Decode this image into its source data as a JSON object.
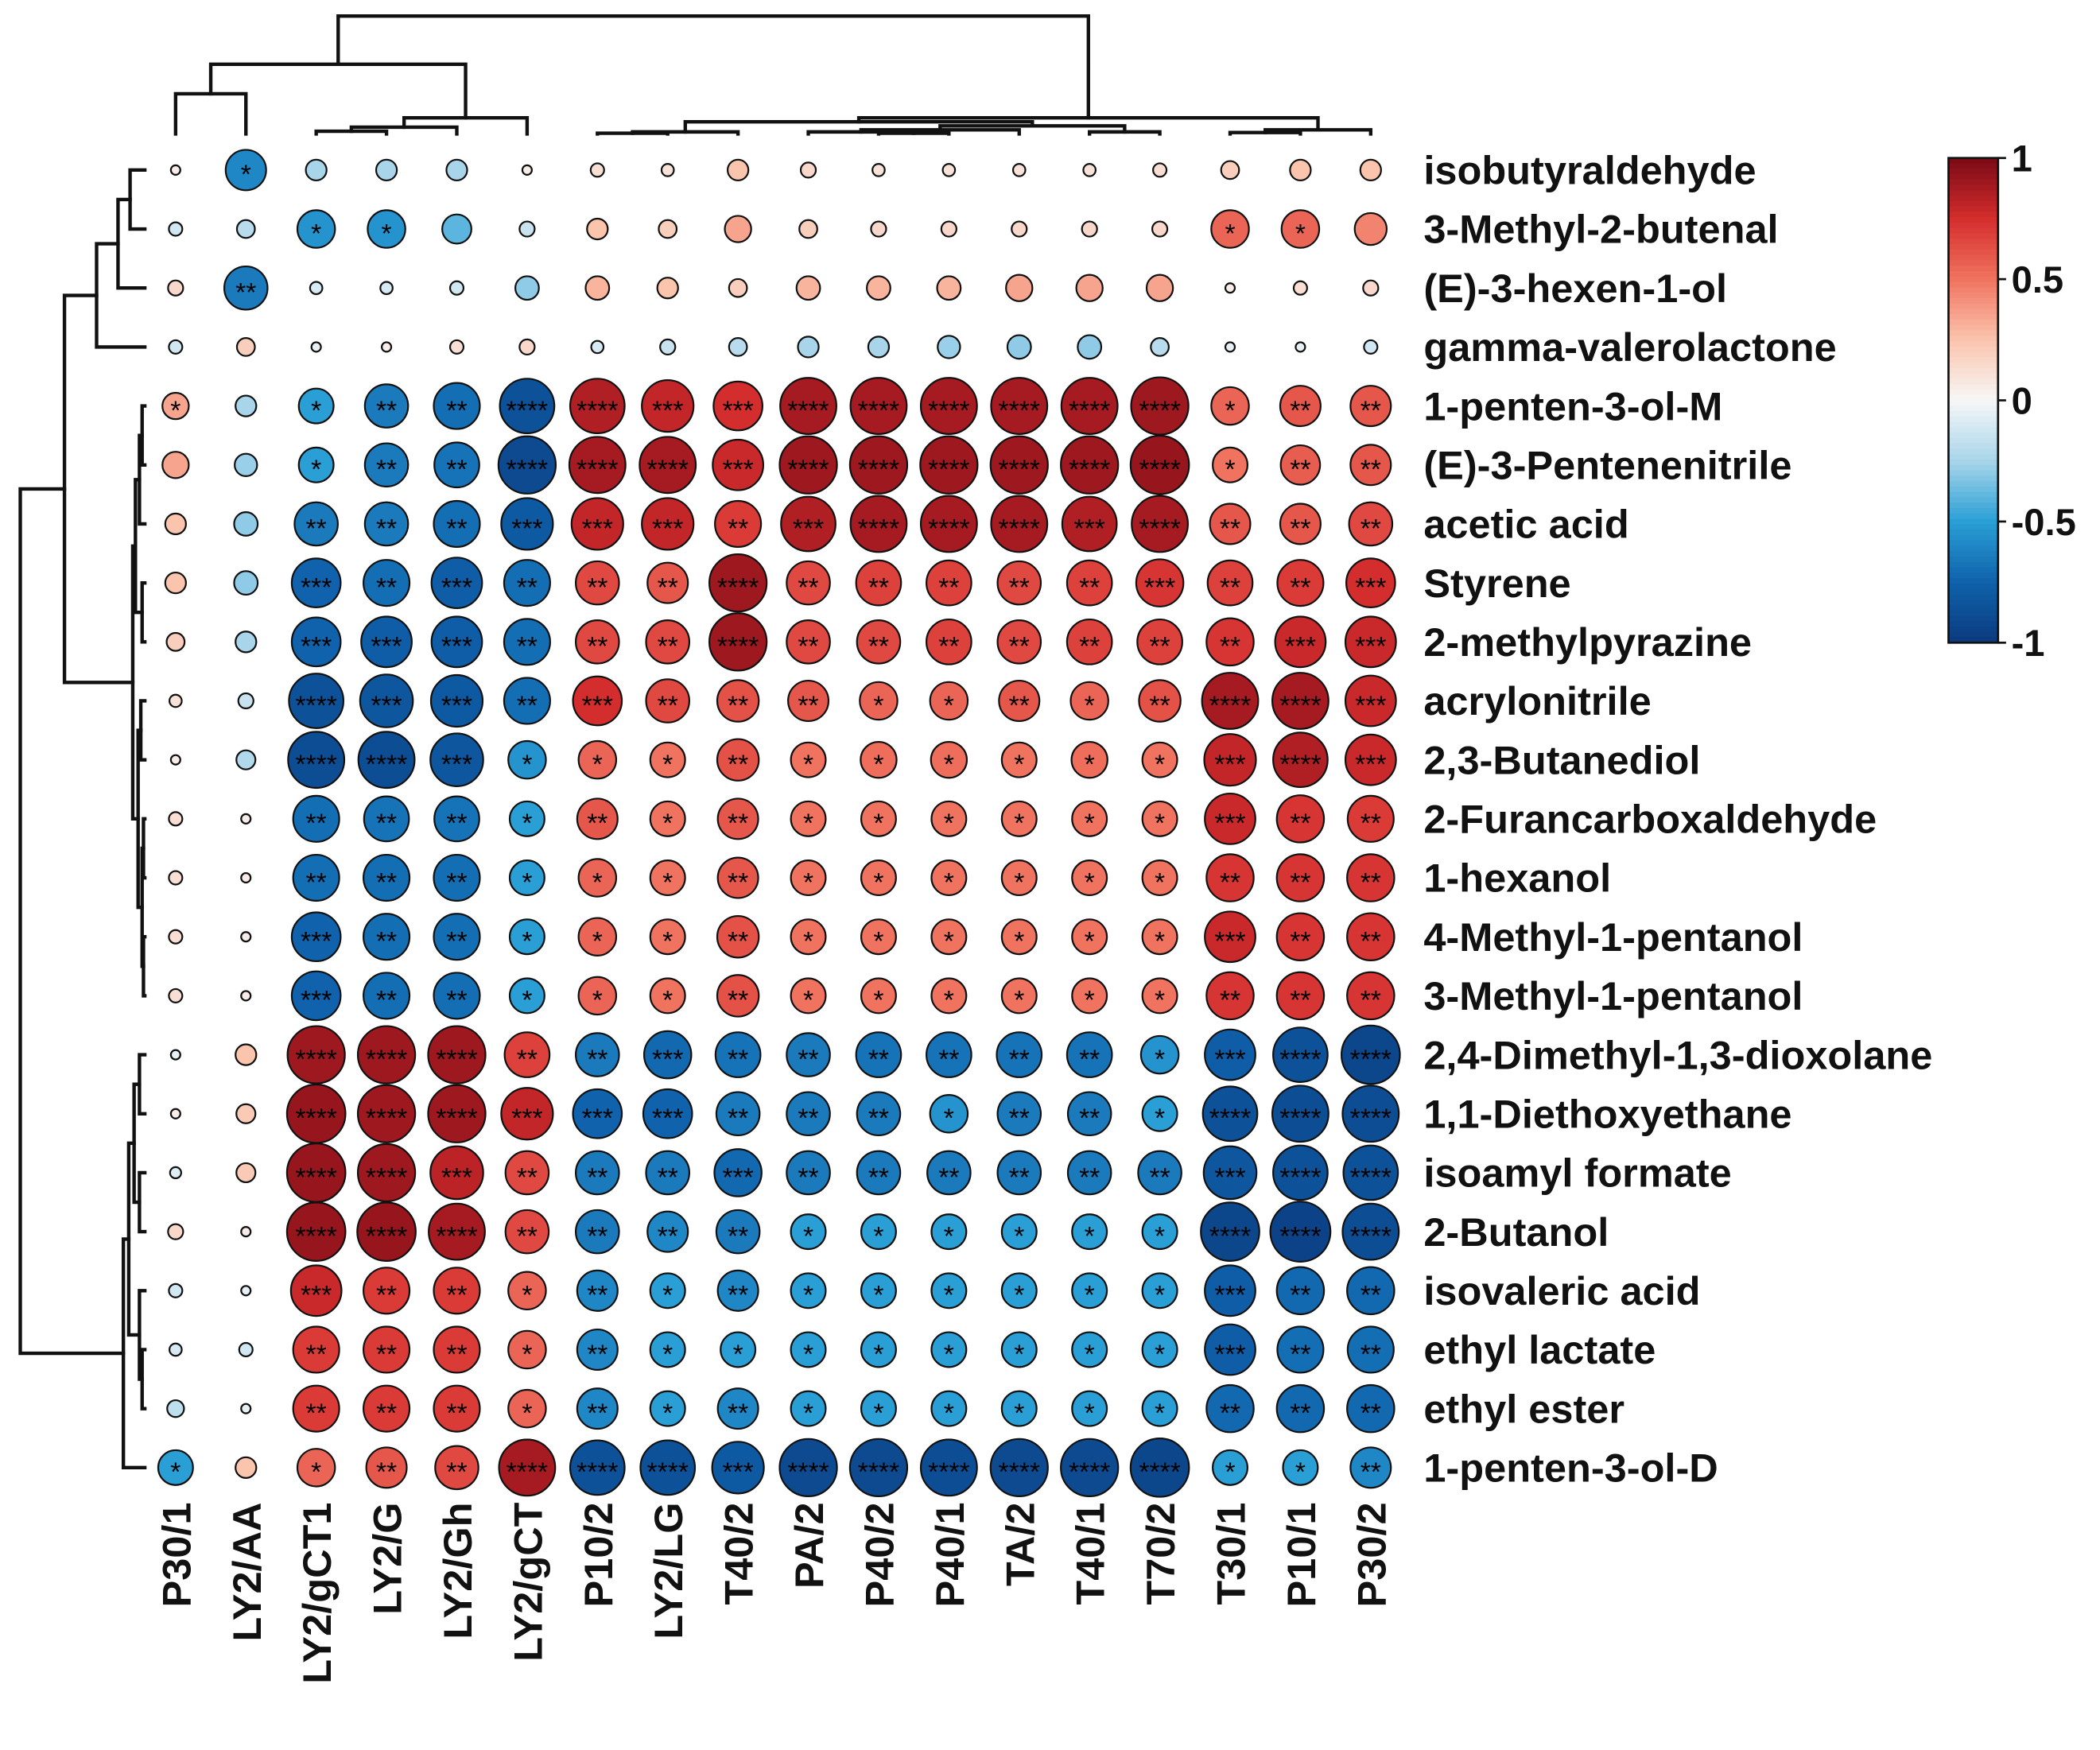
{
  "chart_data": {
    "type": "heatmap",
    "subtype": "correlation-bubble-with-dendrograms",
    "rows": [
      "isobutyraldehyde",
      "3-Methyl-2-butenal",
      "(E)-3-hexen-1-ol",
      "gamma-valerolactone",
      "1-penten-3-ol-M",
      "(E)-3-Pentenenitrile",
      "acetic acid",
      "Styrene",
      "2-methylpyrazine",
      "acrylonitrile",
      "2,3-Butanediol",
      "2-Furancarboxaldehyde",
      "1-hexanol",
      "4-Methyl-1-pentanol",
      "3-Methyl-1-pentanol",
      "2,4-Dimethyl-1,3-dioxolane",
      "1,1-Diethoxyethane",
      "isoamyl formate",
      "2-Butanol",
      "isovaleric acid",
      "ethyl lactate",
      "ethyl ester",
      "1-penten-3-ol-D"
    ],
    "columns": [
      "P30/1",
      "LY2/AA",
      "LY2/gCT1",
      "LY2/G",
      "LY2/Gh",
      "LY2/gCT",
      "P10/2",
      "LY2/LG",
      "T40/2",
      "PA/2",
      "P40/2",
      "P40/1",
      "TA/2",
      "T40/1",
      "T70/2",
      "T30/1",
      "P10/1",
      "P30/2"
    ],
    "values": [
      [
        0.05,
        -0.6,
        -0.25,
        -0.25,
        -0.25,
        0.05,
        0.12,
        0.1,
        0.25,
        0.15,
        0.1,
        0.1,
        0.1,
        0.1,
        0.12,
        0.2,
        0.25,
        0.25
      ],
      [
        -0.12,
        -0.2,
        -0.55,
        -0.55,
        -0.4,
        -0.15,
        0.25,
        0.2,
        0.35,
        0.2,
        0.15,
        0.15,
        0.15,
        0.15,
        0.15,
        0.55,
        0.55,
        0.45
      ],
      [
        0.15,
        -0.65,
        -0.1,
        -0.1,
        -0.12,
        -0.3,
        0.3,
        0.25,
        0.2,
        0.3,
        0.3,
        0.3,
        0.35,
        0.35,
        0.35,
        0.05,
        0.12,
        0.15
      ],
      [
        -0.12,
        0.2,
        -0.05,
        0.05,
        0.12,
        0.15,
        -0.1,
        -0.15,
        -0.2,
        -0.25,
        -0.25,
        -0.28,
        -0.3,
        -0.3,
        -0.2,
        -0.05,
        -0.05,
        -0.12
      ],
      [
        0.35,
        -0.25,
        -0.5,
        -0.65,
        -0.7,
        -0.85,
        0.85,
        0.8,
        0.75,
        0.88,
        0.88,
        0.88,
        0.88,
        0.88,
        0.9,
        0.55,
        0.6,
        0.6
      ],
      [
        0.35,
        -0.28,
        -0.5,
        -0.65,
        -0.68,
        -0.9,
        0.88,
        0.88,
        0.78,
        0.9,
        0.9,
        0.9,
        0.9,
        0.9,
        0.92,
        0.5,
        0.58,
        0.6
      ],
      [
        0.25,
        -0.3,
        -0.65,
        -0.65,
        -0.7,
        -0.8,
        0.8,
        0.8,
        0.7,
        0.85,
        0.88,
        0.88,
        0.88,
        0.85,
        0.88,
        0.6,
        0.6,
        0.65
      ],
      [
        0.25,
        -0.3,
        -0.75,
        -0.7,
        -0.78,
        -0.7,
        0.65,
        0.6,
        0.9,
        0.65,
        0.68,
        0.68,
        0.65,
        0.68,
        0.72,
        0.68,
        0.7,
        0.75
      ],
      [
        0.2,
        -0.25,
        -0.75,
        -0.78,
        -0.78,
        -0.7,
        0.65,
        0.65,
        0.9,
        0.65,
        0.65,
        0.68,
        0.65,
        0.68,
        0.68,
        0.72,
        0.78,
        0.78
      ],
      [
        0.1,
        -0.15,
        -0.85,
        -0.82,
        -0.8,
        -0.7,
        0.75,
        0.65,
        0.62,
        0.6,
        0.55,
        0.55,
        0.6,
        0.55,
        0.62,
        0.88,
        0.88,
        0.78
      ],
      [
        0.05,
        -0.22,
        -0.88,
        -0.88,
        -0.82,
        -0.55,
        0.55,
        0.5,
        0.62,
        0.5,
        0.52,
        0.52,
        0.5,
        0.52,
        0.5,
        0.8,
        0.85,
        0.78
      ],
      [
        0.12,
        0.05,
        -0.7,
        -0.68,
        -0.68,
        -0.5,
        0.6,
        0.5,
        0.6,
        0.5,
        0.5,
        0.5,
        0.5,
        0.5,
        0.5,
        0.78,
        0.72,
        0.7
      ],
      [
        0.12,
        0.05,
        -0.7,
        -0.7,
        -0.7,
        -0.5,
        0.55,
        0.5,
        0.6,
        0.5,
        0.5,
        0.5,
        0.5,
        0.5,
        0.5,
        0.72,
        0.72,
        0.72
      ],
      [
        0.12,
        0.05,
        -0.75,
        -0.7,
        -0.7,
        -0.5,
        0.55,
        0.5,
        0.62,
        0.5,
        0.5,
        0.5,
        0.5,
        0.5,
        0.5,
        0.78,
        0.72,
        0.72
      ],
      [
        0.12,
        0.05,
        -0.75,
        -0.7,
        -0.7,
        -0.5,
        0.55,
        0.5,
        0.62,
        0.5,
        0.5,
        0.5,
        0.5,
        0.5,
        0.5,
        0.72,
        0.72,
        0.72
      ],
      [
        -0.05,
        0.25,
        0.9,
        0.9,
        0.9,
        0.68,
        -0.65,
        -0.72,
        -0.68,
        -0.65,
        -0.68,
        -0.68,
        -0.68,
        -0.68,
        -0.55,
        -0.78,
        -0.85,
        -0.92
      ],
      [
        0.05,
        0.22,
        0.92,
        0.9,
        0.9,
        0.8,
        -0.75,
        -0.75,
        -0.65,
        -0.65,
        -0.65,
        -0.55,
        -0.65,
        -0.65,
        -0.5,
        -0.85,
        -0.88,
        -0.88
      ],
      [
        -0.08,
        0.22,
        0.92,
        0.9,
        0.82,
        0.65,
        -0.65,
        -0.65,
        -0.72,
        -0.65,
        -0.65,
        -0.65,
        -0.65,
        -0.65,
        -0.65,
        -0.82,
        -0.85,
        -0.85
      ],
      [
        0.15,
        0.05,
        0.92,
        0.92,
        0.88,
        0.65,
        -0.65,
        -0.6,
        -0.65,
        -0.5,
        -0.5,
        -0.5,
        -0.5,
        -0.5,
        -0.5,
        -0.92,
        -0.95,
        -0.88
      ],
      [
        -0.12,
        -0.05,
        0.78,
        0.7,
        0.7,
        0.55,
        -0.6,
        -0.5,
        -0.6,
        -0.5,
        -0.5,
        -0.5,
        -0.5,
        -0.5,
        -0.5,
        -0.78,
        -0.72,
        -0.72
      ],
      [
        -0.1,
        -0.12,
        0.7,
        0.7,
        0.7,
        0.55,
        -0.6,
        -0.5,
        -0.5,
        -0.5,
        -0.5,
        -0.5,
        -0.5,
        -0.5,
        -0.5,
        -0.78,
        -0.7,
        -0.7
      ],
      [
        -0.18,
        -0.05,
        0.7,
        0.7,
        0.7,
        0.55,
        -0.6,
        -0.5,
        -0.6,
        -0.5,
        -0.5,
        -0.5,
        -0.5,
        -0.5,
        -0.5,
        -0.72,
        -0.72,
        -0.72
      ],
      [
        -0.5,
        0.25,
        0.55,
        0.6,
        0.65,
        0.88,
        -0.85,
        -0.85,
        -0.8,
        -0.9,
        -0.9,
        -0.88,
        -0.9,
        -0.9,
        -0.92,
        -0.5,
        -0.5,
        -0.6
      ]
    ],
    "significance": [
      [
        "",
        "*",
        "",
        "",
        "",
        "",
        "",
        "",
        "",
        "",
        "",
        "",
        "",
        "",
        "",
        "",
        "",
        ""
      ],
      [
        "",
        "",
        "*",
        "*",
        "",
        "",
        "",
        "",
        "",
        "",
        "",
        "",
        "",
        "",
        "",
        "*",
        "*",
        ""
      ],
      [
        "",
        "**",
        "",
        "",
        "",
        "",
        "",
        "",
        "",
        "",
        "",
        "",
        "",
        "",
        "",
        "",
        "",
        ""
      ],
      [
        "",
        "",
        "",
        "",
        "",
        "",
        "",
        "",
        "",
        "",
        "",
        "",
        "",
        "",
        "",
        "",
        "",
        ""
      ],
      [
        "*",
        "",
        "*",
        "**",
        "**",
        "****",
        "****",
        "***",
        "***",
        "****",
        "****",
        "****",
        "****",
        "****",
        "****",
        "*",
        "**",
        "**"
      ],
      [
        "",
        "",
        "*",
        "**",
        "**",
        "****",
        "****",
        "****",
        "***",
        "****",
        "****",
        "****",
        "****",
        "****",
        "****",
        "*",
        "**",
        "**"
      ],
      [
        "",
        "",
        "**",
        "**",
        "**",
        "***",
        "***",
        "***",
        "**",
        "***",
        "****",
        "****",
        "****",
        "***",
        "****",
        "**",
        "**",
        "**"
      ],
      [
        "",
        "",
        "***",
        "**",
        "***",
        "**",
        "**",
        "**",
        "****",
        "**",
        "**",
        "**",
        "**",
        "**",
        "***",
        "**",
        "**",
        "***"
      ],
      [
        "",
        "",
        "***",
        "***",
        "***",
        "**",
        "**",
        "**",
        "****",
        "**",
        "**",
        "**",
        "**",
        "**",
        "**",
        "**",
        "***",
        "***"
      ],
      [
        "",
        "",
        "****",
        "***",
        "***",
        "**",
        "***",
        "**",
        "**",
        "**",
        "*",
        "*",
        "**",
        "*",
        "**",
        "****",
        "****",
        "***"
      ],
      [
        "",
        "",
        "****",
        "****",
        "***",
        "*",
        "*",
        "*",
        "**",
        "*",
        "*",
        "*",
        "*",
        "*",
        "*",
        "***",
        "****",
        "***"
      ],
      [
        "",
        "",
        "**",
        "**",
        "**",
        "*",
        "**",
        "*",
        "**",
        "*",
        "*",
        "*",
        "*",
        "*",
        "*",
        "***",
        "**",
        "**"
      ],
      [
        "",
        "",
        "**",
        "**",
        "**",
        "*",
        "*",
        "*",
        "**",
        "*",
        "*",
        "*",
        "*",
        "*",
        "*",
        "**",
        "**",
        "**"
      ],
      [
        "",
        "",
        "***",
        "**",
        "**",
        "*",
        "*",
        "*",
        "**",
        "*",
        "*",
        "*",
        "*",
        "*",
        "*",
        "***",
        "**",
        "**"
      ],
      [
        "",
        "",
        "***",
        "**",
        "**",
        "*",
        "*",
        "*",
        "**",
        "*",
        "*",
        "*",
        "*",
        "*",
        "*",
        "**",
        "**",
        "**"
      ],
      [
        "",
        "",
        "****",
        "****",
        "****",
        "**",
        "**",
        "***",
        "**",
        "**",
        "**",
        "**",
        "**",
        "**",
        "*",
        "***",
        "****",
        "****"
      ],
      [
        "",
        "",
        "****",
        "****",
        "****",
        "***",
        "***",
        "***",
        "**",
        "**",
        "**",
        "*",
        "**",
        "**",
        "*",
        "****",
        "****",
        "****"
      ],
      [
        "",
        "",
        "****",
        "****",
        "***",
        "**",
        "**",
        "**",
        "***",
        "**",
        "**",
        "**",
        "**",
        "**",
        "**",
        "***",
        "****",
        "****"
      ],
      [
        "",
        "",
        "****",
        "****",
        "****",
        "**",
        "**",
        "**",
        "**",
        "*",
        "*",
        "*",
        "*",
        "*",
        "*",
        "****",
        "****",
        "****"
      ],
      [
        "",
        "",
        "***",
        "**",
        "**",
        "*",
        "**",
        "*",
        "**",
        "*",
        "*",
        "*",
        "*",
        "*",
        "*",
        "***",
        "**",
        "**"
      ],
      [
        "",
        "",
        "**",
        "**",
        "**",
        "*",
        "**",
        "*",
        "*",
        "*",
        "*",
        "*",
        "*",
        "*",
        "*",
        "***",
        "**",
        "**"
      ],
      [
        "",
        "",
        "**",
        "**",
        "**",
        "*",
        "**",
        "*",
        "**",
        "*",
        "*",
        "*",
        "*",
        "*",
        "*",
        "**",
        "**",
        "**"
      ],
      [
        "*",
        "",
        "*",
        "**",
        "**",
        "****",
        "****",
        "****",
        "***",
        "****",
        "****",
        "****",
        "****",
        "****",
        "****",
        "*",
        "*",
        "**"
      ]
    ],
    "colorbar": {
      "min": -1,
      "max": 1,
      "ticks": [
        1,
        0.5,
        0,
        -0.5,
        -1
      ],
      "tick_labels": [
        "1",
        "0.5",
        "0",
        "-0.5",
        "-1"
      ]
    },
    "color_scale": {
      "stops": [
        [
          -1.0,
          "#0b3a7e"
        ],
        [
          -0.75,
          "#0f62ab"
        ],
        [
          -0.5,
          "#2a9fd6"
        ],
        [
          -0.25,
          "#a8d5ea"
        ],
        [
          0.0,
          "#f7f7f7"
        ],
        [
          0.25,
          "#fbc4ad"
        ],
        [
          0.5,
          "#f0735f"
        ],
        [
          0.75,
          "#d42d2d"
        ],
        [
          1.0,
          "#7a0a16"
        ]
      ]
    },
    "legend_position": "right",
    "grid": false
  }
}
